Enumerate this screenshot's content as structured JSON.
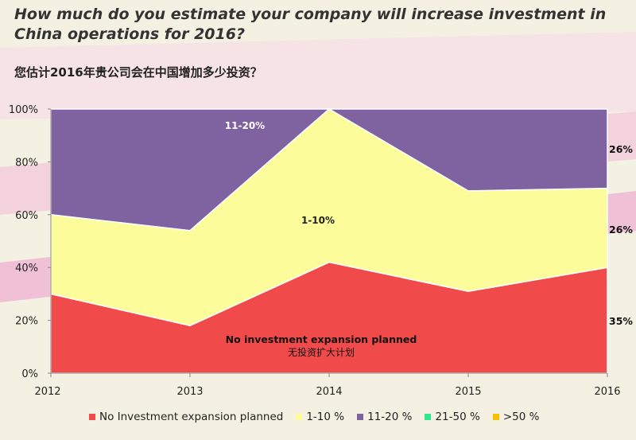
{
  "header": {
    "title_en": "How much do you estimate your company will increase investment in China operations for 2016?",
    "title_cn": "您估计2016年贵公司会在中国增加多少投资？"
  },
  "chart_data": {
    "type": "area",
    "stacked": true,
    "x": [
      "2012",
      "2013",
      "2014",
      "2015",
      "2016"
    ],
    "ylim": [
      0,
      100
    ],
    "yticks": [
      "0%",
      "20%",
      "40%",
      "60%",
      "80%",
      "100%"
    ],
    "grid": false,
    "legend_position": "bottom",
    "series": [
      {
        "name": "No Investment expansion planned",
        "values": [
          30,
          18,
          42,
          31,
          40
        ],
        "color": "#f04a4a"
      },
      {
        "name": "1-10 %",
        "values": [
          30,
          36,
          58,
          38,
          30
        ],
        "color": "#fcfc9a"
      },
      {
        "name": "11-20 %",
        "values": [
          40,
          46,
          0,
          31,
          30
        ],
        "color": "#7f62a0"
      },
      {
        "name": "21-50 %",
        "values": [
          0,
          0,
          0,
          0,
          0
        ],
        "color": "#2ee88a"
      },
      {
        "name": ">50 %",
        "values": [
          0,
          0,
          0,
          0,
          0
        ],
        "color": "#f5c000"
      }
    ],
    "annotations": {
      "label_11_20": "11-20%",
      "label_1_10": "1-10%",
      "label_none_en": "No investment expansion planned",
      "label_none_cn": "无投资扩大计划",
      "right_top": "26%",
      "right_mid": "26%",
      "right_bottom": "35%"
    }
  }
}
